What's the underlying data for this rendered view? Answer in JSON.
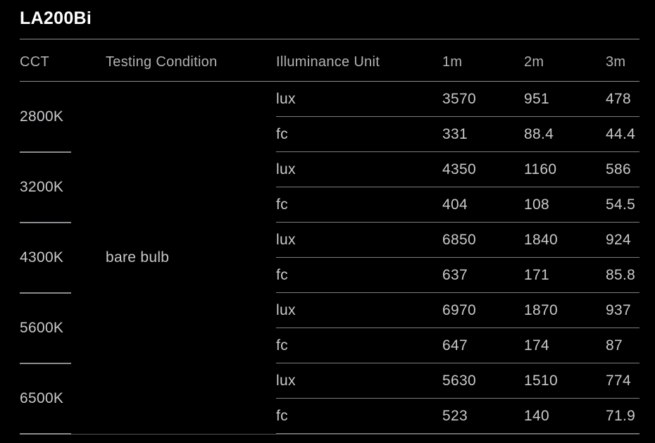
{
  "title": "LA200Bi",
  "table": {
    "headers": {
      "cct": "CCT",
      "testing_condition": "Testing Condition",
      "illuminance_unit": "Illuminance Unit",
      "d1": "1m",
      "d2": "2m",
      "d3": "3m"
    },
    "testing_condition_value": "bare bulb",
    "groups": [
      {
        "cct": "2800K",
        "rows": [
          {
            "unit": "lux",
            "m1": "3570",
            "m2": "951",
            "m3": "478"
          },
          {
            "unit": "fc",
            "m1": "331",
            "m2": "88.4",
            "m3": "44.4"
          }
        ]
      },
      {
        "cct": "3200K",
        "rows": [
          {
            "unit": "lux",
            "m1": "4350",
            "m2": "1160",
            "m3": "586"
          },
          {
            "unit": "fc",
            "m1": "404",
            "m2": "108",
            "m3": "54.5"
          }
        ]
      },
      {
        "cct": "4300K",
        "rows": [
          {
            "unit": "lux",
            "m1": "6850",
            "m2": "1840",
            "m3": "924"
          },
          {
            "unit": "fc",
            "m1": "637",
            "m2": "171",
            "m3": "85.8"
          }
        ]
      },
      {
        "cct": "5600K",
        "rows": [
          {
            "unit": "lux",
            "m1": "6970",
            "m2": "1870",
            "m3": "937"
          },
          {
            "unit": "fc",
            "m1": "647",
            "m2": "174",
            "m3": "87"
          }
        ]
      },
      {
        "cct": "6500K",
        "rows": [
          {
            "unit": "lux",
            "m1": "5630",
            "m2": "1510",
            "m3": "774"
          },
          {
            "unit": "fc",
            "m1": "523",
            "m2": "140",
            "m3": "71.9"
          }
        ]
      }
    ]
  },
  "chart_data": {
    "type": "table",
    "title": "LA200Bi",
    "columns": [
      "CCT",
      "Testing Condition",
      "Illuminance Unit",
      "1m",
      "2m",
      "3m"
    ],
    "rows": [
      [
        "2800K",
        "bare bulb",
        "lux",
        3570,
        951,
        478
      ],
      [
        "2800K",
        "bare bulb",
        "fc",
        331,
        88.4,
        44.4
      ],
      [
        "3200K",
        "bare bulb",
        "lux",
        4350,
        1160,
        586
      ],
      [
        "3200K",
        "bare bulb",
        "fc",
        404,
        108,
        54.5
      ],
      [
        "4300K",
        "bare bulb",
        "lux",
        6850,
        1840,
        924
      ],
      [
        "4300K",
        "bare bulb",
        "fc",
        637,
        171,
        85.8
      ],
      [
        "5600K",
        "bare bulb",
        "lux",
        6970,
        1870,
        937
      ],
      [
        "5600K",
        "bare bulb",
        "fc",
        647,
        174,
        87
      ],
      [
        "6500K",
        "bare bulb",
        "lux",
        5630,
        1510,
        774
      ],
      [
        "6500K",
        "bare bulb",
        "fc",
        523,
        140,
        71.9
      ]
    ]
  },
  "colors": {
    "background": "#000000",
    "title_text": "#ffffff",
    "header_text": "#b3b3b6",
    "body_text": "#c9c9cc",
    "rule": "#8e8e92",
    "row_divider": "#7e7e82",
    "bottom_rule": "#55555a"
  }
}
